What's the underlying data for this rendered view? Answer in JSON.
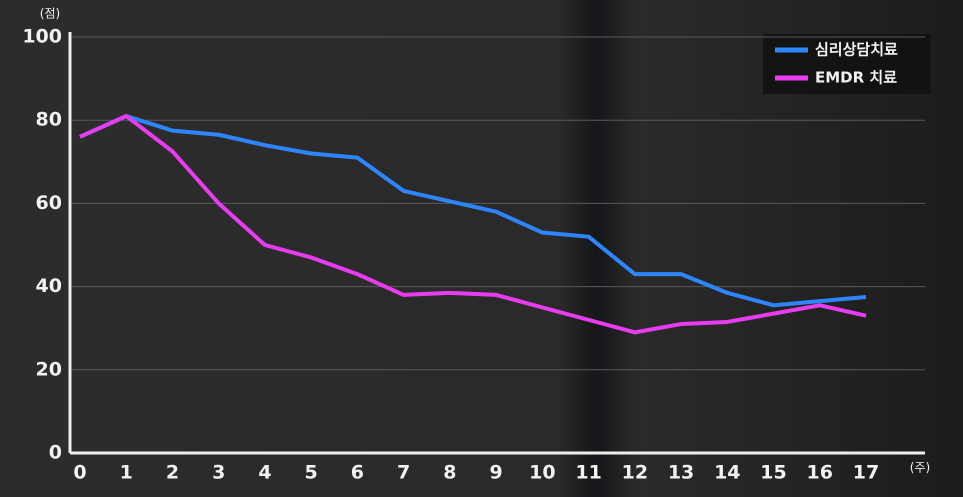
{
  "chart_data": {
    "type": "line",
    "y_label": "(점)",
    "x_label": "(주)",
    "categories": [
      "0",
      "1",
      "2",
      "3",
      "4",
      "5",
      "6",
      "7",
      "8",
      "9",
      "10",
      "11",
      "12",
      "13",
      "14",
      "15",
      "16",
      "17"
    ],
    "series": [
      {
        "name": "심리상담치료",
        "color": "#2e86ff",
        "values": [
          76,
          81,
          77.5,
          76.5,
          74,
          72,
          71,
          63,
          60.5,
          58,
          53,
          52,
          43,
          43,
          38.5,
          35.5,
          36.5,
          37.5
        ]
      },
      {
        "name": "EMDR 치료",
        "color": "#e83cf0",
        "values": [
          76,
          81,
          72.5,
          60,
          50,
          47,
          43,
          38,
          38.5,
          38,
          35,
          32,
          29,
          31,
          31.5,
          33.5,
          35.5,
          33
        ]
      }
    ],
    "ylim": [
      0,
      100
    ],
    "yticks": [
      0,
      20,
      40,
      60,
      80,
      100
    ],
    "grid": true,
    "legend": "top-right"
  }
}
